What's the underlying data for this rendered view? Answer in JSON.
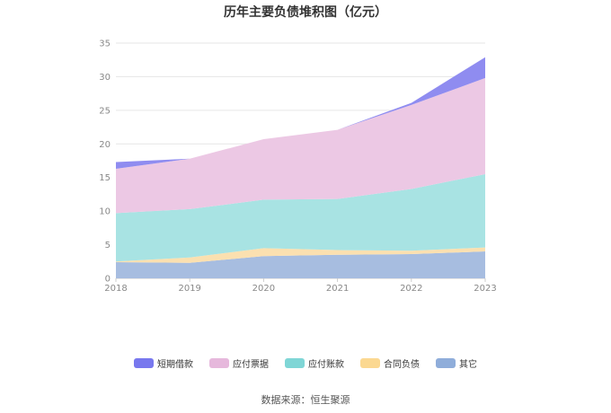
{
  "title": "历年主要负债堆积图（亿元）",
  "source": "数据来源：恒生聚源",
  "colors": {
    "短期借款": "#8f8cf0",
    "应付票据": "#ecc8e4",
    "应付账款": "#a8e3e3",
    "合同负债": "#fbe0b0",
    "其它": "#a7bde0"
  },
  "legend_colors": {
    "短期借款": "#7878ee",
    "应付票据": "#e6b8dc",
    "应付账款": "#7fd6d6",
    "合同负债": "#fbd891",
    "其它": "#8fadda"
  },
  "legend_order": [
    "短期借款",
    "应付票据",
    "应付账款",
    "合同负债",
    "其它"
  ],
  "chart_data": {
    "type": "area",
    "stacked": true,
    "categories": [
      "2018",
      "2019",
      "2020",
      "2021",
      "2022",
      "2023"
    ],
    "yticks": [
      "0",
      "5",
      "10",
      "15",
      "20",
      "25",
      "30",
      "35"
    ],
    "ylim": [
      0,
      35
    ],
    "grid": true,
    "legend_position": "bottom",
    "series": [
      {
        "name": "其它",
        "values": [
          2.4,
          2.3,
          3.3,
          3.5,
          3.6,
          4.0
        ]
      },
      {
        "name": "合同负债",
        "values": [
          0.1,
          0.8,
          1.2,
          0.7,
          0.5,
          0.6
        ]
      },
      {
        "name": "应付账款",
        "values": [
          7.2,
          7.2,
          7.2,
          7.6,
          9.2,
          10.9
        ]
      },
      {
        "name": "应付票据",
        "values": [
          6.6,
          7.5,
          9.0,
          10.3,
          12.5,
          14.3
        ]
      },
      {
        "name": "短期借款",
        "values": [
          1.0,
          0.0,
          0.0,
          0.0,
          0.3,
          3.1
        ]
      }
    ]
  }
}
